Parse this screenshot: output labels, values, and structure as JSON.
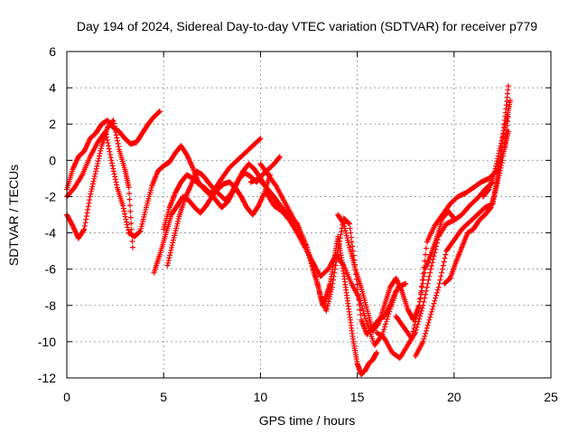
{
  "chart_data": {
    "type": "scatter",
    "title": "Day 194 of 2024, Sidereal Day-to-day VTEC variation (SDTVAR) for receiver p779",
    "xlabel": "GPS time / hours",
    "ylabel": "SDTVAR / TECUs",
    "xlim": [
      0,
      25
    ],
    "ylim": [
      -12,
      6
    ],
    "xticks": [
      0,
      5,
      10,
      15,
      20,
      25
    ],
    "yticks": [
      -12,
      -10,
      -8,
      -6,
      -4,
      -2,
      0,
      2,
      4,
      6
    ],
    "xtick_labels": [
      "0",
      "5",
      "10",
      "15",
      "20",
      "25"
    ],
    "ytick_labels": [
      "-12",
      "-10",
      "-8",
      "-6",
      "-4",
      "-2",
      "0",
      "2",
      "4",
      "6"
    ],
    "grid": true,
    "legend": "none",
    "marker": "+",
    "color": "#ff0000",
    "series": [
      {
        "x": [
          0.0,
          0.3,
          0.6,
          0.9,
          1.2,
          1.5,
          1.8,
          2.1,
          2.4,
          2.7,
          3.0,
          3.3,
          3.6,
          3.9,
          4.2,
          4.5,
          4.8
        ],
        "y": [
          -1.6,
          -0.5,
          0.2,
          0.5,
          1.2,
          1.5,
          2.0,
          2.2,
          1.8,
          1.6,
          1.2,
          0.9,
          1.0,
          1.5,
          2.0,
          2.4,
          2.7
        ]
      },
      {
        "x": [
          0.0,
          0.3,
          0.6,
          0.9,
          1.2,
          1.5,
          1.8,
          2.1,
          2.4,
          2.7,
          3.0,
          3.2,
          3.4
        ],
        "y": [
          -3.0,
          -3.6,
          -4.3,
          -3.8,
          -2.0,
          -0.6,
          0.8,
          1.8,
          2.2,
          0.6,
          -0.5,
          -1.5,
          -4.8
        ]
      },
      {
        "x": [
          0.0,
          0.4,
          0.8,
          1.2,
          1.6,
          2.0,
          2.3,
          2.6,
          2.9,
          3.2,
          3.5,
          3.8,
          4.1,
          4.4,
          4.7,
          5.0,
          5.3,
          5.6,
          5.9,
          6.2,
          6.5,
          6.8,
          7.1,
          7.4,
          7.7,
          8.0,
          8.4,
          8.8,
          9.2,
          9.6,
          10.0
        ],
        "y": [
          -2.0,
          -1.5,
          -0.8,
          0.2,
          1.0,
          1.6,
          0.0,
          -1.5,
          -2.5,
          -4.0,
          -4.2,
          -3.9,
          -2.6,
          -1.4,
          -0.6,
          -0.3,
          -0.1,
          0.4,
          0.8,
          0.3,
          -0.4,
          -1.2,
          -1.6,
          -1.9,
          -1.5,
          -1.0,
          -0.4,
          0.0,
          0.4,
          0.8,
          1.2
        ]
      },
      {
        "x": [
          4.5,
          4.8,
          5.1,
          5.4,
          5.7,
          6.0,
          6.3,
          6.6,
          6.9,
          7.2,
          7.5,
          7.8,
          8.1,
          8.4,
          8.7,
          9.0,
          9.3,
          9.6,
          9.9,
          10.2,
          10.5
        ],
        "y": [
          -6.2,
          -5.2,
          -4.1,
          -3.0,
          -2.5,
          -2.0,
          -2.2,
          -2.6,
          -2.9,
          -2.5,
          -2.0,
          -1.6,
          -1.3,
          -1.2,
          -1.5,
          -2.0,
          -2.6,
          -3.0,
          -2.5,
          -1.8,
          -0.8
        ]
      },
      {
        "x": [
          5.0,
          5.3,
          5.6,
          5.9,
          6.2,
          6.5,
          6.8,
          7.1,
          7.4,
          7.7,
          8.0,
          8.3,
          8.6,
          8.9,
          9.2,
          9.5,
          9.8,
          10.1,
          10.4,
          10.7,
          11.0
        ],
        "y": [
          -3.8,
          -2.6,
          -1.8,
          -1.2,
          -0.8,
          -1.0,
          -1.3,
          -1.5,
          -1.8,
          -2.2,
          -2.6,
          -2.3,
          -1.7,
          -1.0,
          -0.7,
          -0.9,
          -1.2,
          -0.8,
          -0.5,
          -0.2,
          0.2
        ]
      },
      {
        "x": [
          5.2,
          5.5,
          5.8,
          6.1,
          6.4,
          6.7,
          7.0,
          7.3,
          7.6,
          7.9,
          8.2,
          8.5,
          8.8,
          9.1,
          9.4,
          9.7,
          10.0,
          10.3,
          10.6,
          10.9,
          11.2
        ],
        "y": [
          -5.8,
          -4.4,
          -3.1,
          -2.1,
          -1.4,
          -0.6,
          -0.8,
          -1.2,
          -1.6,
          -1.9,
          -2.2,
          -1.8,
          -1.2,
          -0.6,
          -0.2,
          -0.5,
          -1.0,
          -1.5,
          -1.9,
          -2.4,
          -2.8
        ]
      },
      {
        "x": [
          9.5,
          9.9,
          10.3,
          10.7,
          11.1,
          11.5,
          11.9,
          12.3,
          12.7,
          13.0,
          13.2,
          13.4,
          13.6,
          13.8,
          14.0,
          14.2,
          14.4,
          14.6,
          14.8,
          15.0,
          15.2,
          15.4,
          15.6,
          15.8,
          16.0
        ],
        "y": [
          -1.2,
          -1.0,
          -1.5,
          -2.0,
          -2.6,
          -3.0,
          -3.5,
          -4.5,
          -6.0,
          -7.0,
          -8.0,
          -7.5,
          -6.8,
          -5.5,
          -4.2,
          -5.5,
          -7.0,
          -8.5,
          -10.0,
          -11.2,
          -11.8,
          -11.6,
          -11.2,
          -11.0,
          -10.6
        ]
      },
      {
        "x": [
          10.0,
          10.4,
          10.8,
          11.2,
          11.6,
          12.0,
          12.4,
          12.8,
          13.1,
          13.4,
          13.7,
          14.0,
          14.3,
          14.6,
          14.9,
          15.2,
          15.5,
          15.8,
          16.1,
          16.4,
          16.7,
          17.0
        ],
        "y": [
          -0.2,
          -0.8,
          -1.4,
          -2.2,
          -3.0,
          -3.8,
          -4.8,
          -6.2,
          -7.5,
          -8.3,
          -7.0,
          -5.0,
          -3.2,
          -3.5,
          -6.0,
          -8.8,
          -9.6,
          -9.2,
          -8.8,
          -8.6,
          -8.0,
          -7.2
        ]
      },
      {
        "x": [
          10.3,
          10.7,
          11.1,
          11.5,
          11.9,
          12.3,
          12.7,
          13.1,
          13.5,
          13.9,
          14.3,
          14.7,
          15.1,
          15.5,
          15.9,
          16.3,
          16.7,
          17.1,
          17.5
        ],
        "y": [
          -1.8,
          -2.5,
          -2.8,
          -3.3,
          -4.0,
          -4.8,
          -5.6,
          -6.4,
          -6.0,
          -5.2,
          -5.8,
          -6.8,
          -7.6,
          -9.0,
          -10.2,
          -9.6,
          -8.2,
          -7.0,
          -6.8
        ]
      },
      {
        "x": [
          14.0,
          14.3,
          14.6,
          14.9,
          15.2,
          15.5,
          15.8,
          16.1,
          16.4,
          16.7,
          17.0,
          17.3,
          17.6,
          17.9,
          18.2,
          18.5,
          18.8,
          19.1,
          19.4,
          19.7,
          20.0
        ],
        "y": [
          -3.0,
          -3.5,
          -4.8,
          -6.0,
          -7.0,
          -8.2,
          -9.4,
          -9.0,
          -8.0,
          -7.0,
          -6.5,
          -7.2,
          -8.2,
          -8.8,
          -8.0,
          -6.0,
          -5.2,
          -4.3,
          -3.2,
          -2.8,
          -3.2
        ]
      },
      {
        "x": [
          16.0,
          16.4,
          16.8,
          17.2,
          17.6,
          18.0,
          18.4,
          18.8,
          19.2,
          19.6,
          20.0,
          20.4,
          20.8,
          21.2,
          21.6,
          22.0
        ],
        "y": [
          -9.5,
          -9.8,
          -10.6,
          -10.9,
          -10.2,
          -9.5,
          -8.0,
          -6.0,
          -4.2,
          -3.5,
          -3.3,
          -3.0,
          -2.5,
          -2.1,
          -1.6,
          -1.2
        ]
      },
      {
        "x": [
          17.0,
          17.4,
          17.8,
          18.2,
          18.6,
          19.0,
          19.4,
          19.8,
          20.2,
          20.6,
          21.0,
          21.4,
          21.8,
          22.2,
          22.6,
          22.8
        ],
        "y": [
          -8.6,
          -9.2,
          -9.8,
          -8.0,
          -4.5,
          -3.6,
          -3.0,
          -2.4,
          -2.0,
          -1.8,
          -1.5,
          -1.2,
          -1.0,
          -0.6,
          0.6,
          1.6
        ]
      },
      {
        "x": [
          18.0,
          18.4,
          18.8,
          19.2,
          19.6,
          20.0,
          20.4,
          20.8,
          21.2,
          21.6,
          22.0,
          22.2,
          22.4,
          22.6,
          22.8
        ],
        "y": [
          -10.8,
          -10.0,
          -8.5,
          -7.0,
          -5.0,
          -4.4,
          -3.8,
          -3.4,
          -3.0,
          -2.6,
          -2.4,
          -1.2,
          0.2,
          2.0,
          4.1
        ]
      },
      {
        "x": [
          19.5,
          19.8,
          20.1,
          20.4,
          20.7,
          21.0,
          21.3,
          21.6,
          21.9,
          22.2,
          22.5,
          22.8
        ],
        "y": [
          -6.8,
          -6.5,
          -5.6,
          -4.8,
          -4.0,
          -3.8,
          -3.3,
          -3.0,
          -2.6,
          -1.4,
          0.0,
          2.4
        ]
      },
      {
        "x": [
          21.5,
          21.8,
          22.1,
          22.4,
          22.7,
          22.9
        ],
        "y": [
          -2.0,
          -1.6,
          -0.6,
          0.8,
          2.2,
          3.3
        ]
      }
    ]
  }
}
